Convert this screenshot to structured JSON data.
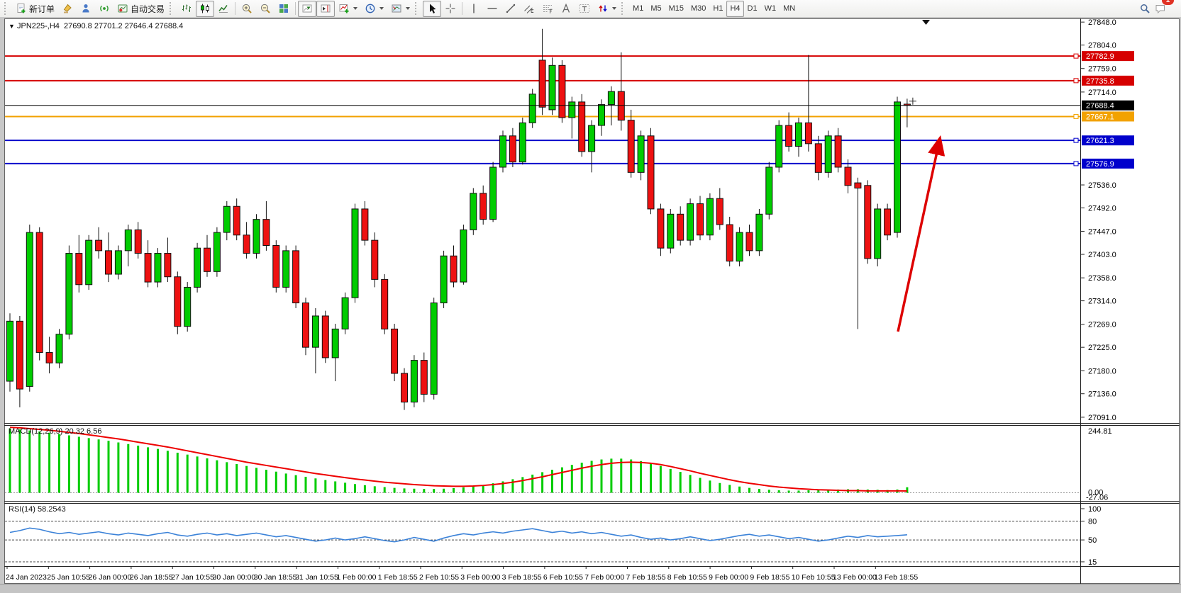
{
  "toolbar": {
    "new_order": "新订单",
    "autotrade": "自动交易",
    "timeframes": [
      "M1",
      "M5",
      "M15",
      "M30",
      "H1",
      "H4",
      "D1",
      "W1",
      "MN"
    ],
    "active_timeframe": "H4",
    "chat_badge": "1",
    "icon_names": [
      "new-order-icon",
      "styler-icon",
      "market-icon",
      "signals-icon",
      "autotrade-icon",
      "bar-chart-icon",
      "candlestick-chart-icon",
      "line-chart-icon",
      "zoom-in-icon",
      "zoom-out-icon",
      "tile-windows-icon",
      "auto-scroll-icon",
      "chart-shift-icon",
      "add-indicator-icon",
      "periods-icon",
      "templates-icon",
      "cursor-icon",
      "crosshair-icon",
      "vertical-line-icon",
      "horizontal-line-icon",
      "trendline-icon",
      "equidistant-channel-icon",
      "fibonacci-icon",
      "text-icon",
      "text-label-icon",
      "arrows-icon",
      "search-icon",
      "chat-icon"
    ]
  },
  "chart": {
    "symbol_period": "JPN225-,H4",
    "open": "27690.8",
    "high": "27701.2",
    "low": "27646.4",
    "close": "27688.4",
    "price_ticks": [
      "27848.0",
      "27804.0",
      "27759.0",
      "27714.0",
      "27536.0",
      "27492.0",
      "27447.0",
      "27403.0",
      "27358.0",
      "27314.0",
      "27269.0",
      "27225.0",
      "27180.0",
      "27136.0",
      "27091.0"
    ],
    "price_lines": [
      {
        "value": 27782.9,
        "label": "27782.9",
        "color": "#d60000"
      },
      {
        "value": 27735.8,
        "label": "27735.8",
        "color": "#d60000"
      },
      {
        "value": 27667.1,
        "label": "27667.1",
        "color": "#f2a200"
      },
      {
        "value": 27621.3,
        "label": "27621.3",
        "color": "#0000cc"
      },
      {
        "value": 27576.9,
        "label": "27576.9",
        "color": "#0000cc"
      }
    ],
    "bid_line": {
      "value": 27688.4,
      "label": "27688.4",
      "color": "#000000"
    },
    "time_labels": [
      "24 Jan 2023",
      "25 Jan 10:55",
      "26 Jan 00:00",
      "26 Jan 18:55",
      "27 Jan 10:55",
      "30 Jan 00:00",
      "30 Jan 18:55",
      "31 Jan 10:55",
      "1 Feb 00:00",
      "1 Feb 18:55",
      "2 Feb 10:55",
      "3 Feb 00:00",
      "3 Feb 18:55",
      "6 Feb 10:55",
      "7 Feb 00:00",
      "7 Feb 18:55",
      "8 Feb 10:55",
      "9 Feb 00:00",
      "9 Feb 18:55",
      "10 Feb 10:55",
      "13 Feb 00:00",
      "13 Feb 18:55"
    ],
    "colors": {
      "bull": "#00cc00",
      "bear": "#ee1111",
      "wick": "#111111"
    },
    "candles": [
      [
        27160,
        27290,
        27140,
        27275
      ],
      [
        27275,
        27285,
        27110,
        27145
      ],
      [
        27150,
        27460,
        27140,
        27445
      ],
      [
        27445,
        27455,
        27200,
        27215
      ],
      [
        27215,
        27245,
        27175,
        27195
      ],
      [
        27195,
        27260,
        27185,
        27250
      ],
      [
        27250,
        27420,
        27240,
        27405
      ],
      [
        27405,
        27440,
        27330,
        27345
      ],
      [
        27345,
        27440,
        27335,
        27430
      ],
      [
        27430,
        27455,
        27395,
        27410
      ],
      [
        27410,
        27445,
        27350,
        27365
      ],
      [
        27365,
        27420,
        27355,
        27410
      ],
      [
        27410,
        27460,
        27380,
        27450
      ],
      [
        27450,
        27465,
        27395,
        27405
      ],
      [
        27405,
        27430,
        27340,
        27350
      ],
      [
        27350,
        27415,
        27340,
        27405
      ],
      [
        27405,
        27435,
        27350,
        27360
      ],
      [
        27360,
        27370,
        27250,
        27265
      ],
      [
        27265,
        27350,
        27255,
        27340
      ],
      [
        27340,
        27425,
        27330,
        27415
      ],
      [
        27415,
        27440,
        27360,
        27370
      ],
      [
        27370,
        27455,
        27360,
        27445
      ],
      [
        27445,
        27505,
        27430,
        27495
      ],
      [
        27495,
        27510,
        27430,
        27440
      ],
      [
        27440,
        27465,
        27395,
        27405
      ],
      [
        27405,
        27480,
        27395,
        27470
      ],
      [
        27470,
        27505,
        27410,
        27420
      ],
      [
        27420,
        27430,
        27330,
        27340
      ],
      [
        27340,
        27420,
        27330,
        27410
      ],
      [
        27410,
        27420,
        27300,
        27310
      ],
      [
        27310,
        27320,
        27210,
        27225
      ],
      [
        27225,
        27300,
        27175,
        27285
      ],
      [
        27285,
        27295,
        27195,
        27205
      ],
      [
        27205,
        27270,
        27160,
        27260
      ],
      [
        27260,
        27330,
        27250,
        27320
      ],
      [
        27320,
        27500,
        27310,
        27490
      ],
      [
        27490,
        27505,
        27420,
        27430
      ],
      [
        27430,
        27445,
        27340,
        27355
      ],
      [
        27355,
        27365,
        27250,
        27260
      ],
      [
        27260,
        27270,
        27160,
        27175
      ],
      [
        27175,
        27185,
        27105,
        27120
      ],
      [
        27120,
        27210,
        27110,
        27200
      ],
      [
        27200,
        27215,
        27120,
        27135
      ],
      [
        27135,
        27320,
        27125,
        27310
      ],
      [
        27310,
        27410,
        27300,
        27400
      ],
      [
        27400,
        27420,
        27340,
        27350
      ],
      [
        27350,
        27460,
        27345,
        27450
      ],
      [
        27450,
        27530,
        27440,
        27520
      ],
      [
        27520,
        27535,
        27460,
        27470
      ],
      [
        27470,
        27580,
        27465,
        27570
      ],
      [
        27570,
        27640,
        27560,
        27630
      ],
      [
        27630,
        27645,
        27570,
        27580
      ],
      [
        27580,
        27665,
        27575,
        27655
      ],
      [
        27655,
        27720,
        27645,
        27710
      ],
      [
        27775,
        27835,
        27670,
        27685
      ],
      [
        27680,
        27780,
        27670,
        27765
      ],
      [
        27765,
        27775,
        27655,
        27665
      ],
      [
        27665,
        27705,
        27625,
        27695
      ],
      [
        27695,
        27710,
        27590,
        27600
      ],
      [
        27600,
        27660,
        27560,
        27650
      ],
      [
        27650,
        27700,
        27630,
        27690
      ],
      [
        27690,
        27725,
        27650,
        27715
      ],
      [
        27715,
        27790,
        27640,
        27660
      ],
      [
        27660,
        27680,
        27550,
        27560
      ],
      [
        27560,
        27640,
        27545,
        27630
      ],
      [
        27630,
        27645,
        27480,
        27490
      ],
      [
        27490,
        27500,
        27400,
        27415
      ],
      [
        27415,
        27490,
        27405,
        27480
      ],
      [
        27480,
        27495,
        27420,
        27430
      ],
      [
        27430,
        27510,
        27420,
        27500
      ],
      [
        27500,
        27515,
        27430,
        27440
      ],
      [
        27440,
        27520,
        27430,
        27510
      ],
      [
        27510,
        27530,
        27450,
        27460
      ],
      [
        27460,
        27475,
        27380,
        27390
      ],
      [
        27390,
        27455,
        27380,
        27445
      ],
      [
        27445,
        27460,
        27400,
        27410
      ],
      [
        27410,
        27490,
        27400,
        27480
      ],
      [
        27480,
        27580,
        27470,
        27570
      ],
      [
        27570,
        27660,
        27560,
        27650
      ],
      [
        27650,
        27675,
        27600,
        27610
      ],
      [
        27610,
        27665,
        27590,
        27655
      ],
      [
        27655,
        27785,
        27600,
        27615
      ],
      [
        27615,
        27630,
        27545,
        27560
      ],
      [
        27560,
        27640,
        27550,
        27630
      ],
      [
        27630,
        27645,
        27560,
        27570
      ],
      [
        27570,
        27585,
        27520,
        27535
      ],
      [
        27540,
        27550,
        27260,
        27530
      ],
      [
        27535,
        27545,
        27385,
        27395
      ],
      [
        27395,
        27500,
        27380,
        27490
      ],
      [
        27490,
        27500,
        27430,
        27440
      ],
      [
        27445,
        27705,
        27435,
        27695
      ],
      [
        27690.8,
        27701.2,
        27646.4,
        27688.4
      ]
    ]
  },
  "macd": {
    "label": "MACD(12,26,9) 20.32 6.56",
    "scale_top": "244.81",
    "scale_zero": "0.00",
    "scale_bottom": "-27.06",
    "hist_color": "#00cc00",
    "signal_color": "#ee0000",
    "histogram": [
      238,
      234,
      230,
      226,
      222,
      217,
      212,
      207,
      202,
      197,
      192,
      186,
      180,
      174,
      168,
      162,
      155,
      148,
      141,
      134,
      127,
      120,
      113,
      106,
      99,
      92,
      85,
      78,
      71,
      65,
      59,
      53,
      47,
      42,
      37,
      32,
      28,
      24,
      21,
      18,
      16,
      15,
      14,
      14,
      15,
      17,
      20,
      24,
      29,
      35,
      42,
      50,
      58,
      67,
      76,
      85,
      94,
      103,
      111,
      118,
      123,
      126,
      126,
      123,
      117,
      109,
      99,
      88,
      77,
      66,
      55,
      45,
      36,
      29,
      23,
      18,
      14,
      11,
      9,
      8,
      8,
      9,
      10,
      11,
      12,
      13,
      13,
      12,
      11,
      10,
      12,
      20.3
    ],
    "signal": [
      242,
      240,
      237,
      234,
      231,
      227,
      223,
      219,
      214,
      209,
      204,
      199,
      193,
      187,
      181,
      175,
      169,
      162,
      155,
      148,
      141,
      134,
      127,
      120,
      113,
      107,
      101,
      95,
      89,
      83,
      77,
      71,
      66,
      61,
      56,
      51,
      47,
      43,
      39,
      36,
      33,
      30,
      28,
      26,
      25,
      24,
      24,
      25,
      27,
      30,
      34,
      39,
      45,
      52,
      59,
      67,
      75,
      83,
      91,
      98,
      104,
      109,
      112,
      113,
      112,
      109,
      104,
      97,
      89,
      81,
      72,
      64,
      56,
      48,
      41,
      35,
      30,
      25,
      21,
      18,
      15,
      13,
      11,
      10,
      9,
      8,
      8,
      7,
      7,
      7,
      7,
      6.6
    ]
  },
  "rsi": {
    "label": "RSI(14) 58.2543",
    "axis_labels": [
      "100",
      "80",
      "50",
      "15"
    ],
    "level_values": [
      80,
      50,
      15
    ],
    "line_color": "#3b82d8",
    "values": [
      62,
      65,
      69,
      67,
      63,
      60,
      62,
      59,
      61,
      63,
      60,
      58,
      61,
      59,
      57,
      60,
      62,
      58,
      56,
      59,
      61,
      58,
      60,
      57,
      59,
      61,
      58,
      55,
      57,
      54,
      51,
      48,
      50,
      53,
      50,
      52,
      55,
      52,
      49,
      47,
      50,
      54,
      51,
      48,
      53,
      57,
      60,
      58,
      61,
      63,
      61,
      64,
      66,
      68,
      65,
      62,
      64,
      61,
      63,
      60,
      62,
      59,
      56,
      58,
      54,
      51,
      53,
      50,
      52,
      55,
      52,
      49,
      51,
      54,
      57,
      59,
      56,
      58,
      55,
      52,
      54,
      51,
      48,
      50,
      53,
      56,
      54,
      57,
      55,
      56,
      57,
      58.25
    ]
  },
  "annotation": {
    "name": "up-trend-arrow",
    "color": "#dd0000"
  }
}
